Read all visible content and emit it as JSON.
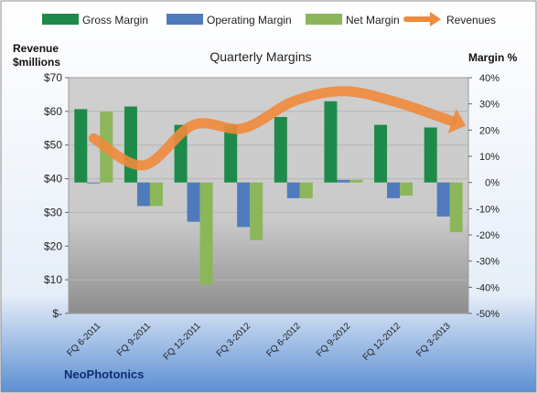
{
  "chart_data": {
    "type": "bar",
    "title": "Quarterly Margins",
    "left_axis_label_line1": "Revenue",
    "left_axis_label_line2": "$millions",
    "right_axis_label": "Margin %",
    "company": "NeoPhotonics",
    "categories": [
      "FQ 6-2011",
      "FQ 9-2011",
      "FQ 12-2011",
      "FQ 3-2012",
      "FQ 6-2012",
      "FQ 9-2012",
      "FQ 12-2012",
      "FQ 3-2013"
    ],
    "left_ticks": [
      "$70",
      "$60",
      "$50",
      "$40",
      "$30",
      "$20",
      "$10",
      "$-"
    ],
    "right_ticks": [
      "40%",
      "30%",
      "20%",
      "10%",
      "0%",
      "-10%",
      "-20%",
      "-30%",
      "-40%",
      "-50%"
    ],
    "left_ylim": [
      0,
      70
    ],
    "right_ylim": [
      -50,
      40
    ],
    "legend_position": "top",
    "series": [
      {
        "name": "Gross Margin",
        "axis": "right",
        "kind": "bar",
        "color": "#1e8a4a",
        "values": [
          28,
          29,
          22,
          22,
          25,
          31,
          22,
          21
        ]
      },
      {
        "name": "Operating Margin",
        "axis": "right",
        "kind": "bar",
        "color": "#4f7bbd",
        "values": [
          0,
          -9,
          -15,
          -17,
          -6,
          1,
          -6,
          -13
        ]
      },
      {
        "name": "Net Margin",
        "axis": "right",
        "kind": "bar",
        "color": "#8cb65a",
        "values": [
          27,
          -9,
          -39,
          -22,
          -6,
          1,
          -5,
          -19
        ]
      },
      {
        "name": "Revenues",
        "axis": "left",
        "kind": "line",
        "color": "#f08a3c",
        "values": [
          52,
          44,
          56,
          55,
          63,
          66,
          63,
          58
        ]
      }
    ]
  }
}
